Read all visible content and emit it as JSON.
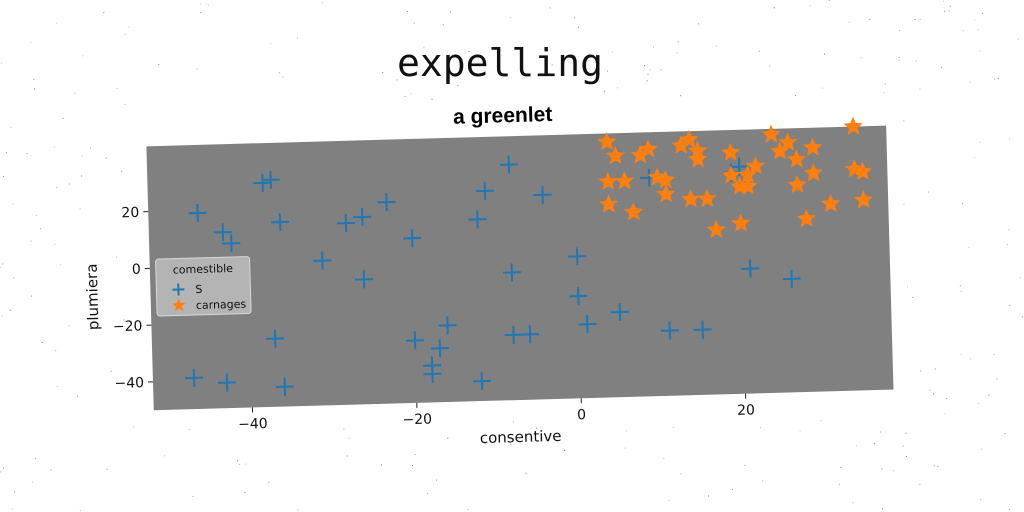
{
  "chart_data": {
    "type": "scatter",
    "title": "expelling",
    "subtitle": "a greenlet",
    "xlabel": "consentive",
    "ylabel": "plumiera",
    "xlim": [
      -52,
      38
    ],
    "ylim": [
      -50,
      43
    ],
    "xticks": [
      -40,
      -20,
      0,
      20
    ],
    "yticks": [
      -40,
      -20,
      0,
      20
    ],
    "xtick_labels": [
      "−40",
      "−20",
      "0",
      "20"
    ],
    "ytick_labels": [
      "−40",
      "−20",
      "0",
      "20"
    ],
    "grid": false,
    "background": "#808080",
    "legend": {
      "title": "comestible",
      "placement": "center-left"
    },
    "series": [
      {
        "name": "S",
        "marker": "plus",
        "color": "#1f77b4",
        "points": [
          [
            -46,
            19
          ],
          [
            -43,
            12
          ],
          [
            -42,
            8
          ],
          [
            -38,
            29
          ],
          [
            -37,
            30
          ],
          [
            -36,
            15
          ],
          [
            -31,
            1
          ],
          [
            -28,
            14
          ],
          [
            -26,
            16
          ],
          [
            -26,
            -6
          ],
          [
            -23,
            21
          ],
          [
            -20,
            8
          ],
          [
            -37,
            -26
          ],
          [
            -36,
            -43
          ],
          [
            -47,
            -39
          ],
          [
            -43,
            -41
          ],
          [
            -20,
            -28
          ],
          [
            -18,
            -37
          ],
          [
            -18,
            -40
          ],
          [
            -17,
            -31
          ],
          [
            -16,
            -23
          ],
          [
            -12,
            14
          ],
          [
            -11,
            24
          ],
          [
            -8,
            33
          ],
          [
            -8,
            -5
          ],
          [
            -12,
            -43
          ],
          [
            -8,
            -27
          ],
          [
            -6,
            -27
          ],
          [
            -4,
            22
          ],
          [
            0,
            -14
          ],
          [
            0,
            0
          ],
          [
            1,
            -24
          ],
          [
            5,
            -20
          ],
          [
            11,
            -27
          ],
          [
            15,
            -27
          ],
          [
            19,
            28
          ],
          [
            21,
            -6
          ],
          [
            26,
            -10
          ],
          [
            9,
            27
          ],
          [
            20,
            30
          ]
        ]
      },
      {
        "name": "carnages",
        "marker": "star",
        "color": "#ff7f0e",
        "points": [
          [
            4,
            40
          ],
          [
            5,
            35
          ],
          [
            4,
            26
          ],
          [
            6,
            26
          ],
          [
            4,
            18
          ],
          [
            7,
            15
          ],
          [
            8,
            35
          ],
          [
            9,
            37
          ],
          [
            10,
            27
          ],
          [
            11,
            26
          ],
          [
            11,
            21
          ],
          [
            13,
            38
          ],
          [
            14,
            40
          ],
          [
            15,
            36
          ],
          [
            15,
            33
          ],
          [
            14,
            19
          ],
          [
            16,
            19
          ],
          [
            17,
            8
          ],
          [
            19,
            35
          ],
          [
            19,
            27
          ],
          [
            20,
            23
          ],
          [
            20,
            10
          ],
          [
            21,
            27
          ],
          [
            22,
            30
          ],
          [
            24,
            41
          ],
          [
            25,
            35
          ],
          [
            26,
            38
          ],
          [
            27,
            32
          ],
          [
            27,
            23
          ],
          [
            28,
            11
          ],
          [
            29,
            36
          ],
          [
            29,
            27
          ],
          [
            31,
            16
          ],
          [
            34,
            43
          ],
          [
            34,
            28
          ],
          [
            35,
            27
          ],
          [
            35,
            17
          ],
          [
            21,
            23
          ]
        ]
      }
    ]
  }
}
